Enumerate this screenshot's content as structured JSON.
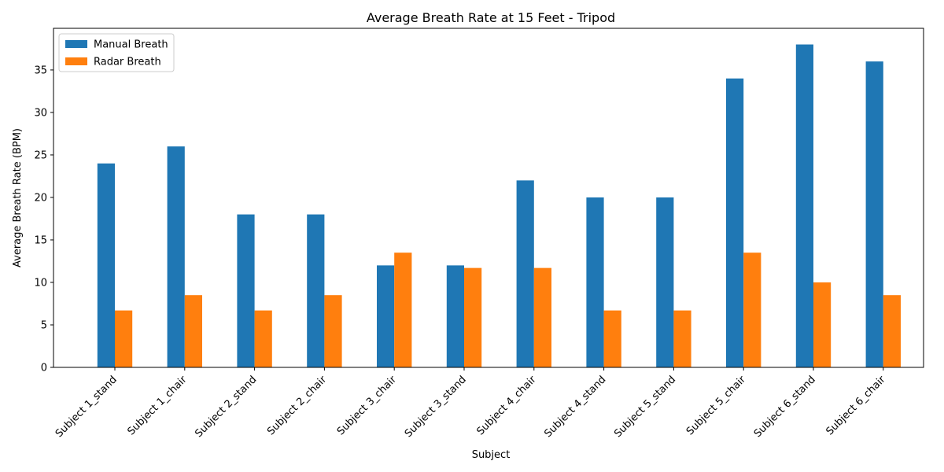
{
  "chart_data": {
    "type": "bar",
    "title": "Average Breath Rate at 15 Feet - Tripod",
    "xlabel": "Subject",
    "ylabel": "Average Breath Rate (BPM)",
    "ylim": [
      0,
      39.9
    ],
    "yticks": [
      0,
      5,
      10,
      15,
      20,
      25,
      30,
      35
    ],
    "grid": false,
    "legend_position": "top-left",
    "categories": [
      "Subject 1_stand",
      "Subject 1_chair",
      "Subject 2_stand",
      "Subject 2_chair",
      "Subject 3_chair",
      "Subject 3_stand",
      "Subject 4_chair",
      "Subject 4_stand",
      "Subject 5_stand",
      "Subject 5_chair",
      "Subject 6_stand",
      "Subject 6_chair"
    ],
    "series": [
      {
        "name": "Manual Breath",
        "color": "#1f77b4",
        "values": [
          24,
          26,
          18,
          18,
          12,
          12,
          22,
          20,
          20,
          34,
          38,
          36
        ]
      },
      {
        "name": "Radar Breath",
        "color": "#ff7f0e",
        "values": [
          6.7,
          8.5,
          6.7,
          8.5,
          13.5,
          11.7,
          11.7,
          6.7,
          6.7,
          13.5,
          10.0,
          8.5
        ]
      }
    ]
  }
}
